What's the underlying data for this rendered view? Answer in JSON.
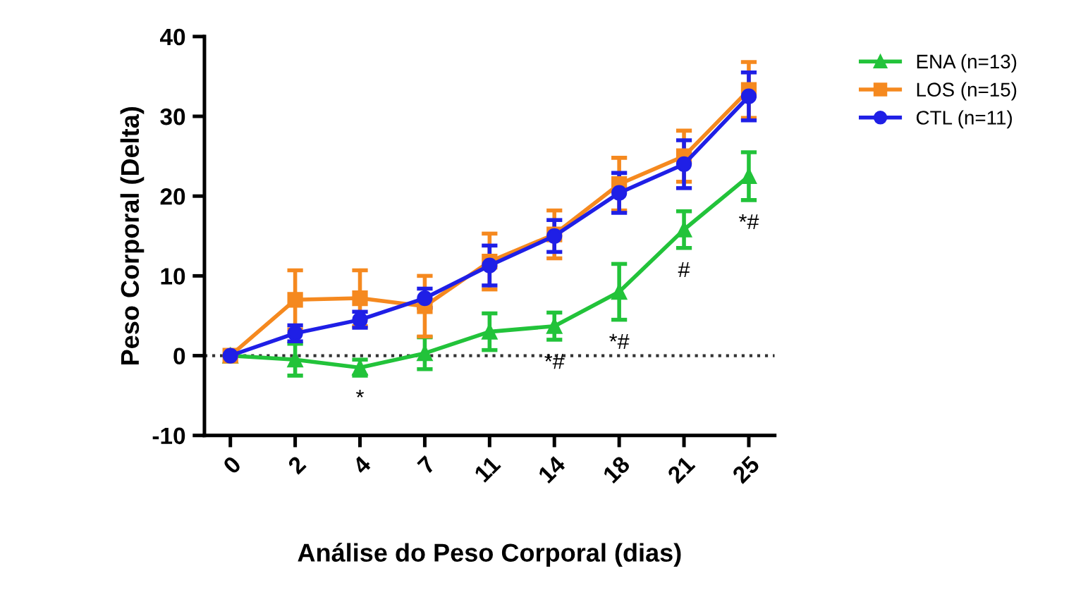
{
  "chart_data": {
    "type": "line",
    "xlabel": "Análise do Peso Corporal (dias)",
    "ylabel": "Peso Corporal (Delta)",
    "categories": [
      "0",
      "2",
      "4",
      "7",
      "11",
      "14",
      "18",
      "21",
      "25"
    ],
    "series": [
      {
        "name": "ENA (n=13)",
        "color": "#22c33a",
        "marker": "triangle",
        "values": [
          0,
          -0.5,
          -1.5,
          0.3,
          3,
          3.7,
          8,
          15.8,
          22.5
        ],
        "errors": [
          null,
          2,
          1,
          2,
          2.3,
          1.7,
          3.5,
          2.3,
          3
        ]
      },
      {
        "name": "LOS (n=15)",
        "color": "#f5891f",
        "marker": "square",
        "values": [
          0,
          7,
          7.2,
          6.2,
          11.8,
          15.2,
          21.5,
          25,
          33.3
        ],
        "errors": [
          null,
          3.7,
          3.5,
          3.8,
          3.5,
          3,
          3.3,
          3.2,
          3.5
        ]
      },
      {
        "name": "CTL (n=11)",
        "color": "#1f1fe6",
        "marker": "circle",
        "values": [
          0,
          2.8,
          4.5,
          7.2,
          11.3,
          15,
          20.4,
          24,
          32.5
        ],
        "errors": [
          null,
          1,
          1,
          1.2,
          2.5,
          2,
          2.5,
          3,
          3
        ]
      }
    ],
    "ylim": [
      -10,
      40
    ],
    "yticks": [
      -10,
      0,
      10,
      20,
      30,
      40
    ],
    "grid": false,
    "legend": "top right",
    "ref_lines": [
      {
        "axis": "y",
        "value": 0,
        "color": "#333333",
        "line_style": "dotted"
      }
    ],
    "annotations": [
      {
        "text": "*",
        "x": "4",
        "y": -1.5
      },
      {
        "text": "*#",
        "x": "14",
        "y": 3.7
      },
      {
        "text": "*#",
        "x": "18",
        "y": 8
      },
      {
        "text": "#",
        "x": "21",
        "y": 15.8
      },
      {
        "text": "*#",
        "x": "25",
        "y": 22.5
      }
    ]
  }
}
